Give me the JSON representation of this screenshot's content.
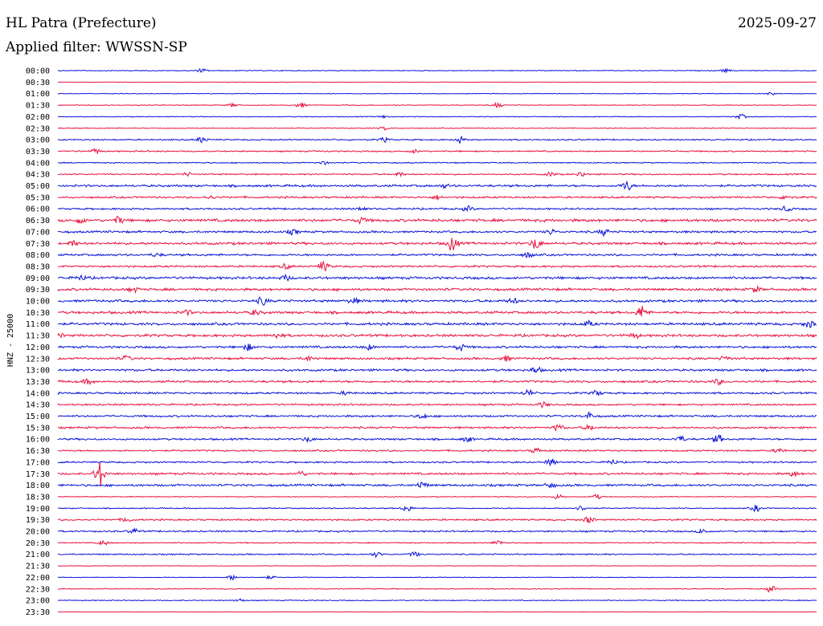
{
  "header": {
    "station": "HL Patra (Prefecture)",
    "date": "2025-09-27",
    "filter": "Applied filter: WWSSN-SP"
  },
  "chart_data": {
    "type": "line",
    "title": "",
    "ylabel": "HNZ - 25000",
    "colors": [
      "#0a14d6",
      "#e8123c"
    ],
    "rows": [
      {
        "label": "00:00",
        "amp": 0.6,
        "events": [
          [
            0.19,
            2.2
          ],
          [
            0.88,
            1.8
          ]
        ]
      },
      {
        "label": "00:30",
        "amp": 0.3,
        "events": []
      },
      {
        "label": "01:00",
        "amp": 0.5,
        "events": [
          [
            0.94,
            1.5
          ]
        ]
      },
      {
        "label": "01:30",
        "amp": 0.6,
        "events": [
          [
            0.23,
            2
          ],
          [
            0.32,
            3.2
          ],
          [
            0.58,
            3
          ]
        ]
      },
      {
        "label": "02:00",
        "amp": 0.6,
        "events": [
          [
            0.43,
            1.5
          ],
          [
            0.9,
            3
          ]
        ]
      },
      {
        "label": "02:30",
        "amp": 0.6,
        "events": [
          [
            0.43,
            2
          ]
        ]
      },
      {
        "label": "03:00",
        "amp": 1.0,
        "events": [
          [
            0.19,
            3.5
          ],
          [
            0.43,
            2.5
          ],
          [
            0.53,
            4
          ]
        ]
      },
      {
        "label": "03:30",
        "amp": 1.0,
        "events": [
          [
            0.05,
            3
          ],
          [
            0.47,
            2
          ]
        ]
      },
      {
        "label": "04:00",
        "amp": 0.8,
        "events": [
          [
            0.35,
            2
          ]
        ]
      },
      {
        "label": "04:30",
        "amp": 1.0,
        "events": [
          [
            0.17,
            2
          ],
          [
            0.45,
            2.5
          ],
          [
            0.65,
            2.5
          ],
          [
            0.69,
            3
          ]
        ]
      },
      {
        "label": "05:00",
        "amp": 1.6,
        "events": [
          [
            0.51,
            2
          ],
          [
            0.75,
            6
          ]
        ]
      },
      {
        "label": "05:30",
        "amp": 1.4,
        "events": [
          [
            0.2,
            2
          ],
          [
            0.5,
            2
          ],
          [
            0.96,
            3
          ]
        ]
      },
      {
        "label": "06:00",
        "amp": 1.3,
        "events": [
          [
            0.4,
            2
          ],
          [
            0.54,
            3
          ],
          [
            0.96,
            3
          ]
        ]
      },
      {
        "label": "06:30",
        "amp": 2.0,
        "events": [
          [
            0.03,
            3
          ],
          [
            0.08,
            4
          ],
          [
            0.4,
            3
          ]
        ]
      },
      {
        "label": "07:00",
        "amp": 1.5,
        "events": [
          [
            0.31,
            3
          ],
          [
            0.65,
            3
          ],
          [
            0.72,
            4
          ]
        ]
      },
      {
        "label": "07:30",
        "amp": 1.8,
        "events": [
          [
            0.02,
            3
          ],
          [
            0.52,
            9
          ],
          [
            0.63,
            7
          ]
        ]
      },
      {
        "label": "08:00",
        "amp": 1.5,
        "events": [
          [
            0.13,
            2
          ],
          [
            0.62,
            3
          ]
        ]
      },
      {
        "label": "08:30",
        "amp": 1.4,
        "events": [
          [
            0.3,
            3
          ],
          [
            0.35,
            6
          ]
        ]
      },
      {
        "label": "09:00",
        "amp": 1.8,
        "events": [
          [
            0.03,
            3
          ],
          [
            0.3,
            3
          ]
        ]
      },
      {
        "label": "09:30",
        "amp": 1.8,
        "events": [
          [
            0.1,
            3
          ],
          [
            0.92,
            3
          ]
        ]
      },
      {
        "label": "10:00",
        "amp": 1.8,
        "events": [
          [
            0.27,
            5
          ],
          [
            0.39,
            3
          ],
          [
            0.6,
            3
          ]
        ]
      },
      {
        "label": "10:30",
        "amp": 1.8,
        "events": [
          [
            0.17,
            3
          ],
          [
            0.26,
            3
          ],
          [
            0.77,
            8
          ]
        ]
      },
      {
        "label": "11:00",
        "amp": 1.8,
        "events": [
          [
            0.7,
            3
          ],
          [
            0.99,
            4
          ]
        ]
      },
      {
        "label": "11:30",
        "amp": 1.8,
        "events": [
          [
            0.0,
            3
          ],
          [
            0.29,
            3
          ],
          [
            0.76,
            3
          ]
        ]
      },
      {
        "label": "12:00",
        "amp": 1.6,
        "events": [
          [
            0.25,
            4
          ],
          [
            0.41,
            3
          ],
          [
            0.53,
            4
          ]
        ]
      },
      {
        "label": "12:30",
        "amp": 1.6,
        "events": [
          [
            0.09,
            3
          ],
          [
            0.33,
            3
          ],
          [
            0.59,
            3
          ],
          [
            0.88,
            3
          ]
        ]
      },
      {
        "label": "13:00",
        "amp": 1.6,
        "events": [
          [
            0.63,
            4
          ]
        ]
      },
      {
        "label": "13:30",
        "amp": 1.6,
        "events": [
          [
            0.04,
            3
          ],
          [
            0.87,
            3
          ]
        ]
      },
      {
        "label": "14:00",
        "amp": 1.4,
        "events": [
          [
            0.38,
            2
          ],
          [
            0.62,
            4
          ],
          [
            0.71,
            3
          ]
        ]
      },
      {
        "label": "14:30",
        "amp": 1.3,
        "events": [
          [
            0.64,
            3
          ]
        ]
      },
      {
        "label": "15:00",
        "amp": 1.4,
        "events": [
          [
            0.48,
            3
          ],
          [
            0.7,
            4
          ]
        ]
      },
      {
        "label": "15:30",
        "amp": 1.4,
        "events": [
          [
            0.66,
            4
          ],
          [
            0.7,
            3
          ]
        ]
      },
      {
        "label": "16:00",
        "amp": 1.4,
        "events": [
          [
            0.33,
            3
          ],
          [
            0.54,
            3
          ],
          [
            0.82,
            4
          ],
          [
            0.87,
            5
          ]
        ]
      },
      {
        "label": "16:30",
        "amp": 1.2,
        "events": [
          [
            0.63,
            3
          ],
          [
            0.95,
            3
          ]
        ]
      },
      {
        "label": "17:00",
        "amp": 1.2,
        "events": [
          [
            0.65,
            4
          ],
          [
            0.73,
            3
          ]
        ]
      },
      {
        "label": "17:30",
        "amp": 1.5,
        "events": [
          [
            0.055,
            16
          ],
          [
            0.32,
            3
          ],
          [
            0.97,
            3
          ]
        ]
      },
      {
        "label": "18:00",
        "amp": 1.6,
        "events": [
          [
            0.48,
            4
          ],
          [
            0.65,
            3
          ]
        ]
      },
      {
        "label": "18:30",
        "amp": 0.6,
        "events": [
          [
            0.66,
            3
          ],
          [
            0.71,
            3
          ]
        ]
      },
      {
        "label": "19:00",
        "amp": 0.8,
        "events": [
          [
            0.46,
            4
          ],
          [
            0.69,
            3
          ],
          [
            0.92,
            4
          ]
        ]
      },
      {
        "label": "19:30",
        "amp": 1.2,
        "events": [
          [
            0.09,
            3
          ],
          [
            0.7,
            4
          ]
        ]
      },
      {
        "label": "20:00",
        "amp": 1.2,
        "events": [
          [
            0.1,
            3
          ],
          [
            0.85,
            3
          ]
        ]
      },
      {
        "label": "20:30",
        "amp": 0.8,
        "events": [
          [
            0.06,
            3
          ],
          [
            0.58,
            3
          ]
        ]
      },
      {
        "label": "21:00",
        "amp": 1.0,
        "events": [
          [
            0.42,
            3
          ],
          [
            0.47,
            3
          ]
        ]
      },
      {
        "label": "21:30",
        "amp": 0.4,
        "events": []
      },
      {
        "label": "22:00",
        "amp": 0.5,
        "events": [
          [
            0.23,
            3
          ],
          [
            0.28,
            2
          ]
        ]
      },
      {
        "label": "22:30",
        "amp": 0.6,
        "events": [
          [
            0.94,
            4
          ]
        ]
      },
      {
        "label": "23:00",
        "amp": 0.7,
        "events": [
          [
            0.24,
            2
          ]
        ]
      },
      {
        "label": "23:30",
        "amp": 0.3,
        "events": []
      }
    ]
  }
}
